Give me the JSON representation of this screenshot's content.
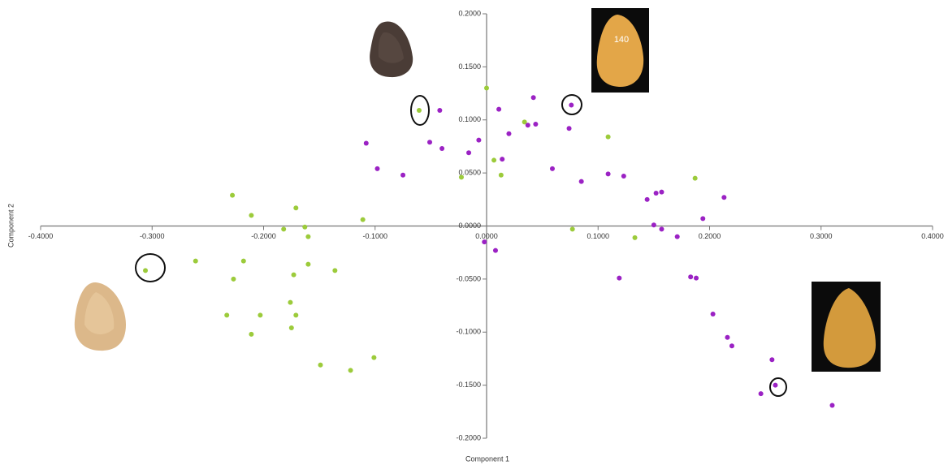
{
  "chart_data": {
    "type": "scatter",
    "x_label": "Component 1",
    "y_label": "Component 2",
    "xlim": [
      -0.4,
      0.4
    ],
    "ylim": [
      -0.2,
      0.2
    ],
    "xticks": [
      {
        "value": -0.4,
        "label": "-0.4000"
      },
      {
        "value": -0.3,
        "label": "-0.3000"
      },
      {
        "value": -0.2,
        "label": "-0.2000"
      },
      {
        "value": -0.1,
        "label": "-0.1000"
      },
      {
        "value": 0,
        "label": "0.0000"
      },
      {
        "value": 0.1,
        "label": "0.1000"
      },
      {
        "value": 0.2,
        "label": "0.2000"
      },
      {
        "value": 0.3,
        "label": "0.3000"
      },
      {
        "value": 0.4,
        "label": "0.4000"
      }
    ],
    "yticks": [
      {
        "value": 0.2,
        "label": "0.2000"
      },
      {
        "value": 0.15,
        "label": "0.1500"
      },
      {
        "value": 0.1,
        "label": "0.1000"
      },
      {
        "value": 0.05,
        "label": "0.0500"
      },
      {
        "value": 0,
        "label": "0.0000"
      },
      {
        "value": -0.05,
        "label": "-0.0500"
      },
      {
        "value": -0.1,
        "label": "-0.1000"
      },
      {
        "value": -0.15,
        "label": "-0.1500"
      },
      {
        "value": -0.2,
        "label": "-0.2000"
      }
    ],
    "series": [
      {
        "color": "#9ccb3b",
        "x": [
          -0.0605,
          0,
          -0.0226,
          0.0066,
          0.013,
          0.034,
          0.109,
          0.187,
          0.077,
          0.133,
          -0.228,
          -0.211,
          -0.171,
          -0.111,
          -0.182,
          -0.163,
          -0.16,
          -0.306,
          -0.261,
          -0.218,
          -0.227,
          -0.173,
          -0.16,
          -0.136,
          -0.176,
          -0.171,
          -0.233,
          -0.203,
          -0.211,
          -0.175,
          -0.149,
          -0.122,
          -0.101
        ],
        "values": [
          0.109,
          0.13,
          0.046,
          0.062,
          0.048,
          0.098,
          0.084,
          0.045,
          -0.003,
          -0.011,
          0.029,
          0.01,
          0.017,
          0.006,
          -0.003,
          -0.001,
          -0.01,
          -0.042,
          -0.033,
          -0.033,
          -0.05,
          -0.046,
          -0.036,
          -0.042,
          -0.072,
          -0.084,
          -0.084,
          -0.084,
          -0.102,
          -0.096,
          -0.131,
          -0.136,
          -0.124
        ]
      },
      {
        "color": "#9b22c4",
        "x": [
          -0.042,
          -0.108,
          -0.098,
          -0.075,
          -0.051,
          -0.04,
          -0.007,
          -0.016,
          0.011,
          0.014,
          0.02,
          0.042,
          0.037,
          0.044,
          0.074,
          0.076,
          0.059,
          0.085,
          0.109,
          0.123,
          0.144,
          0.152,
          0.157,
          0.15,
          0.157,
          0.171,
          0.194,
          0.213,
          -0.002,
          0.008,
          0.119,
          0.183,
          0.188,
          0.203,
          0.216,
          0.22,
          0.256,
          0.259,
          0.246,
          0.31
        ],
        "values": [
          0.109,
          0.078,
          0.054,
          0.048,
          0.079,
          0.073,
          0.081,
          0.069,
          0.11,
          0.063,
          0.087,
          0.121,
          0.095,
          0.096,
          0.092,
          0.114,
          0.054,
          0.042,
          0.049,
          0.047,
          0.025,
          0.031,
          0.032,
          0.001,
          -0.003,
          -0.01,
          0.007,
          0.027,
          -0.015,
          -0.023,
          -0.049,
          -0.048,
          -0.049,
          -0.083,
          -0.105,
          -0.113,
          -0.126,
          -0.15,
          -0.158,
          -0.169
        ]
      }
    ]
  }
}
